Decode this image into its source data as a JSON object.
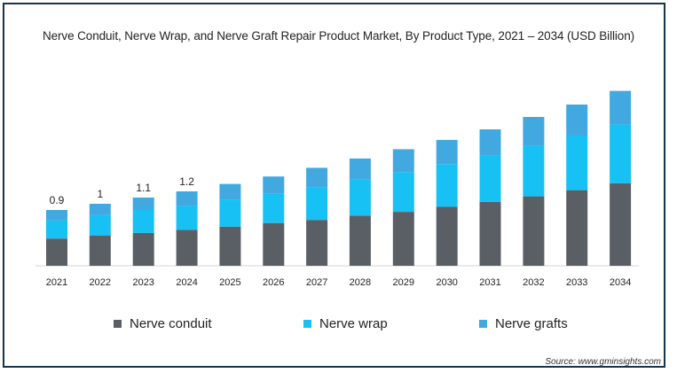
{
  "chart_data": {
    "type": "bar",
    "stacked": true,
    "title": "Nerve Conduit, Nerve Wrap, and Nerve Graft Repair Product Market, By Product Type, 2021 – 2034 (USD Billion)",
    "xlabel": "",
    "ylabel": "",
    "categories": [
      "2021",
      "2022",
      "2023",
      "2024",
      "2025",
      "2026",
      "2027",
      "2028",
      "2029",
      "2030",
      "2031",
      "2032",
      "2033",
      "2034"
    ],
    "series": [
      {
        "name": "Nerve conduit",
        "color": "#5a5f66",
        "values": [
          0.44,
          0.49,
          0.53,
          0.58,
          0.63,
          0.69,
          0.74,
          0.81,
          0.87,
          0.95,
          1.03,
          1.12,
          1.22,
          1.33
        ]
      },
      {
        "name": "Nerve wrap",
        "color": "#17c1f3",
        "values": [
          0.29,
          0.33,
          0.37,
          0.39,
          0.44,
          0.48,
          0.53,
          0.58,
          0.64,
          0.69,
          0.75,
          0.81,
          0.88,
          0.95
        ]
      },
      {
        "name": "Nerve grafts",
        "color": "#41a9df",
        "values": [
          0.17,
          0.18,
          0.2,
          0.23,
          0.25,
          0.27,
          0.31,
          0.34,
          0.37,
          0.39,
          0.42,
          0.47,
          0.5,
          0.54
        ]
      }
    ],
    "data_labels": [
      "0.9",
      "1",
      "1.1",
      "1.2",
      "",
      "",
      "",
      "",
      "",
      "",
      "",
      "",
      "",
      ""
    ],
    "ylim": [
      0,
      2.9
    ],
    "grid": false,
    "legend_position": "bottom"
  },
  "source_text": "Source: www.gminsights.com"
}
